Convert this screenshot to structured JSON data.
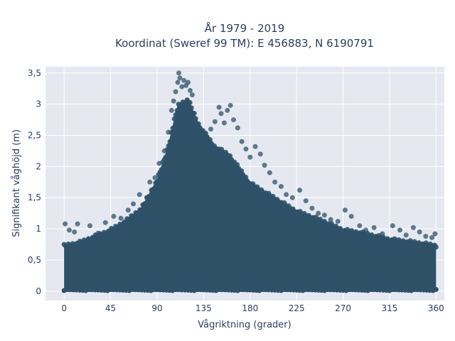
{
  "chart_data": {
    "type": "scatter",
    "title_line1": "År 1979 - 2019",
    "title_line2": "Koordinat (Sweref 99 TM): E 456883, N 6190791",
    "xlabel": "Vågriktning (grader)",
    "ylabel": "Signifikant våghöjd (m)",
    "xlim": [
      -18,
      368
    ],
    "ylim": [
      -0.15,
      3.6
    ],
    "x_ticks": [
      0,
      45,
      90,
      135,
      180,
      225,
      270,
      315,
      360
    ],
    "x_tick_labels": [
      "0",
      "45",
      "90",
      "135",
      "180",
      "225",
      "270",
      "315",
      "360"
    ],
    "y_ticks": [
      0,
      0.5,
      1,
      1.5,
      2,
      2.5,
      3,
      3.5
    ],
    "y_tick_labels": [
      "0",
      "0,5",
      "1",
      "1,5",
      "2",
      "2,5",
      "3",
      "3,5"
    ],
    "grid": true,
    "legend": "none",
    "marker_color": "#2f5168",
    "plot_bg": "#e5e8f0",
    "grid_color": "#ffffff",
    "envelope": {
      "x": [
        0,
        15,
        30,
        45,
        60,
        75,
        90,
        100,
        110,
        120,
        130,
        145,
        160,
        180,
        200,
        225,
        250,
        270,
        290,
        315,
        340,
        360
      ],
      "y": [
        0.75,
        0.8,
        0.9,
        1.0,
        1.15,
        1.35,
        1.8,
        2.3,
        3.0,
        3.1,
        2.7,
        2.35,
        2.2,
        1.75,
        1.55,
        1.3,
        1.15,
        1.0,
        0.95,
        0.85,
        0.8,
        0.75
      ]
    },
    "outliers": [
      {
        "x": 1,
        "y": 1.08
      },
      {
        "x": 5,
        "y": 0.98
      },
      {
        "x": 10,
        "y": 0.95
      },
      {
        "x": 13,
        "y": 1.08
      },
      {
        "x": 25,
        "y": 1.05
      },
      {
        "x": 33,
        "y": 0.93
      },
      {
        "x": 40,
        "y": 1.1
      },
      {
        "x": 48,
        "y": 1.2
      },
      {
        "x": 55,
        "y": 1.17
      },
      {
        "x": 62,
        "y": 1.3
      },
      {
        "x": 67,
        "y": 1.4
      },
      {
        "x": 73,
        "y": 1.55
      },
      {
        "x": 80,
        "y": 1.5
      },
      {
        "x": 83,
        "y": 1.75
      },
      {
        "x": 88,
        "y": 1.82
      },
      {
        "x": 92,
        "y": 2.05
      },
      {
        "x": 97,
        "y": 2.25
      },
      {
        "x": 101,
        "y": 2.55
      },
      {
        "x": 104,
        "y": 2.9
      },
      {
        "x": 106,
        "y": 3.05
      },
      {
        "x": 108,
        "y": 3.2
      },
      {
        "x": 110,
        "y": 3.35
      },
      {
        "x": 111,
        "y": 3.5
      },
      {
        "x": 112,
        "y": 3.42
      },
      {
        "x": 114,
        "y": 3.28
      },
      {
        "x": 116,
        "y": 3.38
      },
      {
        "x": 118,
        "y": 3.3
      },
      {
        "x": 120,
        "y": 3.35
      },
      {
        "x": 122,
        "y": 3.22
      },
      {
        "x": 124,
        "y": 3.15
      },
      {
        "x": 128,
        "y": 2.7
      },
      {
        "x": 133,
        "y": 2.55
      },
      {
        "x": 138,
        "y": 2.48
      },
      {
        "x": 142,
        "y": 2.6
      },
      {
        "x": 146,
        "y": 2.72
      },
      {
        "x": 150,
        "y": 2.95
      },
      {
        "x": 152,
        "y": 2.85
      },
      {
        "x": 155,
        "y": 2.7
      },
      {
        "x": 158,
        "y": 2.9
      },
      {
        "x": 161,
        "y": 2.98
      },
      {
        "x": 164,
        "y": 2.75
      },
      {
        "x": 168,
        "y": 2.62
      },
      {
        "x": 172,
        "y": 2.4
      },
      {
        "x": 176,
        "y": 2.28
      },
      {
        "x": 180,
        "y": 2.15
      },
      {
        "x": 185,
        "y": 2.32
      },
      {
        "x": 190,
        "y": 2.2
      },
      {
        "x": 194,
        "y": 2.02
      },
      {
        "x": 199,
        "y": 1.9
      },
      {
        "x": 204,
        "y": 1.75
      },
      {
        "x": 210,
        "y": 1.68
      },
      {
        "x": 215,
        "y": 1.55
      },
      {
        "x": 221,
        "y": 1.5
      },
      {
        "x": 228,
        "y": 1.62
      },
      {
        "x": 234,
        "y": 1.45
      },
      {
        "x": 240,
        "y": 1.33
      },
      {
        "x": 246,
        "y": 1.25
      },
      {
        "x": 252,
        "y": 1.22
      },
      {
        "x": 258,
        "y": 1.15
      },
      {
        "x": 265,
        "y": 1.12
      },
      {
        "x": 272,
        "y": 1.3
      },
      {
        "x": 278,
        "y": 1.2
      },
      {
        "x": 286,
        "y": 1.05
      },
      {
        "x": 292,
        "y": 0.98
      },
      {
        "x": 300,
        "y": 1.02
      },
      {
        "x": 308,
        "y": 0.92
      },
      {
        "x": 318,
        "y": 1.05
      },
      {
        "x": 325,
        "y": 0.98
      },
      {
        "x": 331,
        "y": 0.9
      },
      {
        "x": 338,
        "y": 1.02
      },
      {
        "x": 344,
        "y": 0.95
      },
      {
        "x": 350,
        "y": 0.88
      },
      {
        "x": 356,
        "y": 0.86
      },
      {
        "x": 359,
        "y": 0.92
      }
    ]
  }
}
